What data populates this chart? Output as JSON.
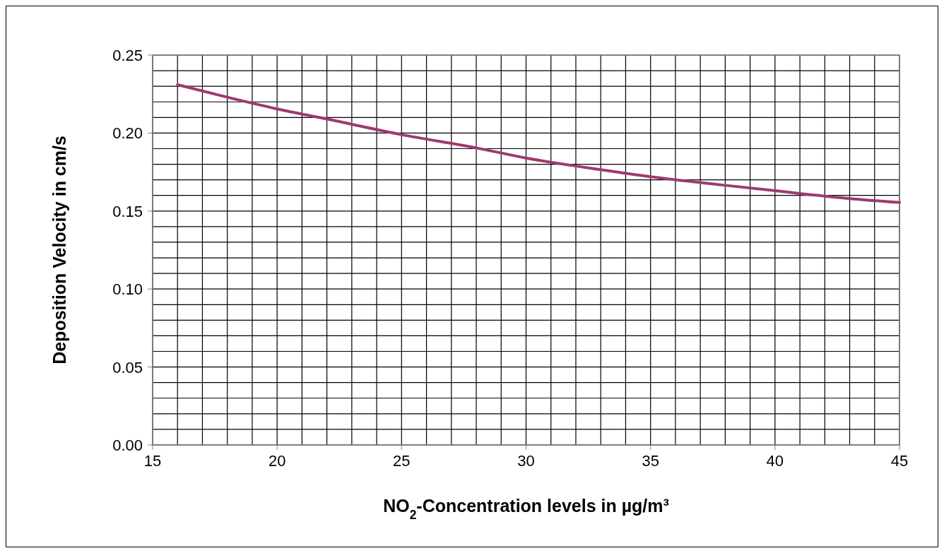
{
  "chart_data": {
    "type": "line",
    "xlabel": "NO$_{2}$-Concentration levels in µg/m³",
    "ylabel": "Deposition Velocity in cm/s",
    "x": [
      16,
      18,
      20,
      22,
      25,
      28,
      30,
      33,
      35,
      38,
      40,
      43,
      45
    ],
    "series": [
      {
        "color": "#9e3a6e",
        "values": [
          0.231,
          0.223,
          0.2155,
          0.209,
          0.199,
          0.1905,
          0.184,
          0.1765,
          0.172,
          0.1665,
          0.163,
          0.158,
          0.1555
        ]
      }
    ],
    "xlim": [
      15,
      45
    ],
    "xticks": [
      15,
      {
        "value": 16,
        "label": null
      },
      {
        "value": 17,
        "label": null
      },
      {
        "value": 18,
        "label": null
      },
      {
        "value": 19,
        "label": null
      },
      20,
      {
        "value": 21,
        "label": null
      },
      {
        "value": 22,
        "label": null
      },
      {
        "value": 23,
        "label": null
      },
      {
        "value": 24,
        "label": null
      },
      25,
      {
        "value": 26,
        "label": null
      },
      {
        "value": 27,
        "label": null
      },
      {
        "value": 28,
        "label": null
      },
      {
        "value": 29,
        "label": null
      },
      30,
      {
        "value": 31,
        "label": null
      },
      {
        "value": 32,
        "label": null
      },
      {
        "value": 33,
        "label": null
      },
      {
        "value": 34,
        "label": null
      },
      35,
      {
        "value": 36,
        "label": null
      },
      {
        "value": 37,
        "label": null
      },
      {
        "value": 38,
        "label": null
      },
      {
        "value": 39,
        "label": null
      },
      40,
      {
        "value": 41,
        "label": null
      },
      {
        "value": 42,
        "label": null
      },
      {
        "value": 43,
        "label": null
      },
      {
        "value": 44,
        "label": null
      },
      45
    ],
    "ylim": [
      0,
      0.25
    ],
    "yticks": [
      {
        "value": 0,
        "label": "0.00"
      },
      {
        "value": 0.01,
        "label": null
      },
      {
        "value": 0.02,
        "label": null
      },
      {
        "value": 0.03,
        "label": null
      },
      {
        "value": 0.04,
        "label": null
      },
      0.05,
      {
        "value": 0.06,
        "label": null
      },
      {
        "value": 0.07,
        "label": null
      },
      {
        "value": 0.08,
        "label": null
      },
      {
        "value": 0.09,
        "label": null
      },
      {
        "value": 0.1,
        "label": "0.10"
      },
      {
        "value": 0.11,
        "label": null
      },
      {
        "value": 0.12,
        "label": null
      },
      {
        "value": 0.13,
        "label": null
      },
      {
        "value": 0.14,
        "label": null
      },
      0.15,
      {
        "value": 0.16,
        "label": null
      },
      {
        "value": 0.17,
        "label": null
      },
      {
        "value": 0.18,
        "label": null
      },
      {
        "value": 0.19,
        "label": null
      },
      {
        "value": 0.2,
        "label": "0.20"
      },
      {
        "value": 0.21,
        "label": null
      },
      {
        "value": 0.22,
        "label": null
      },
      {
        "value": 0.23,
        "label": null
      },
      {
        "value": 0.24,
        "label": null
      },
      0.25
    ],
    "grid": true,
    "marker": "none",
    "line_style": "solid"
  }
}
